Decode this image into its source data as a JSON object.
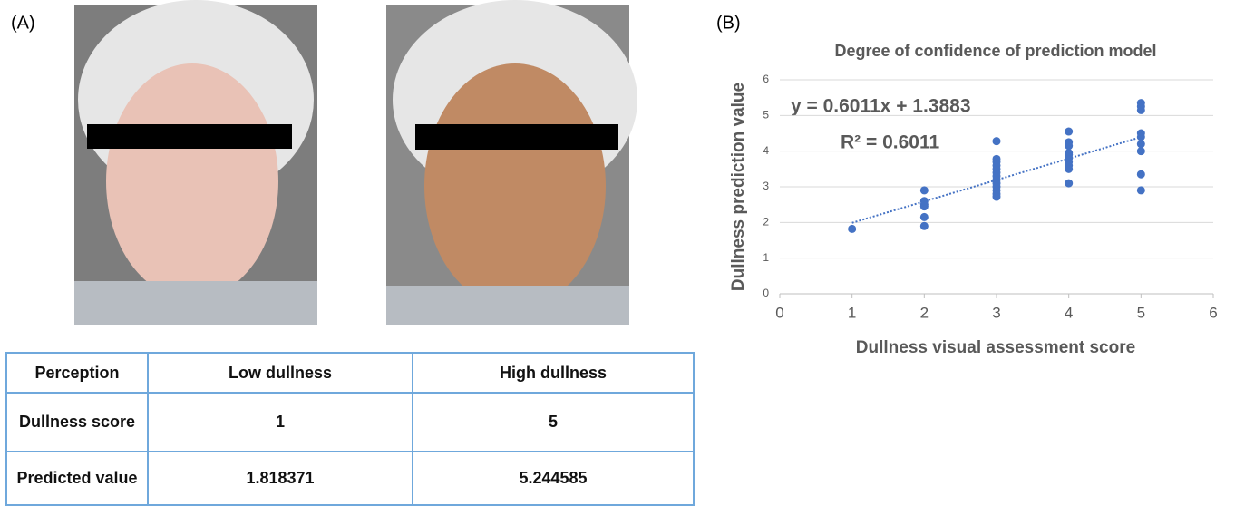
{
  "panels": [
    "(A)",
    "(B)"
  ],
  "table": {
    "header": [
      "Perception",
      "Low dullness",
      "High dullness"
    ],
    "rows": [
      [
        "Dullness score",
        1,
        5
      ],
      [
        "Predicted value",
        1.818371,
        5.244585
      ]
    ]
  },
  "chart_data": {
    "type": "scatter",
    "title": "Degree of confidence of prediction model",
    "x_label": "Dullness visual assessment score",
    "y_label": "Dullness prediction value",
    "annotations": [
      "y = 0.6011x + 1.3883",
      "R² = 0.6011"
    ],
    "x": [
      1,
      2,
      2,
      2,
      2,
      2,
      2,
      3,
      3,
      3,
      3,
      3,
      3,
      3,
      3,
      3,
      3,
      3,
      3,
      3,
      4,
      4,
      4,
      4,
      4,
      4,
      4,
      4,
      4,
      4,
      5,
      5,
      5,
      5,
      5,
      5,
      5,
      5,
      5
    ],
    "values": [
      1.82,
      2.9,
      2.6,
      2.5,
      2.45,
      2.15,
      1.9,
      4.28,
      3.78,
      3.7,
      3.6,
      3.5,
      3.4,
      3.3,
      3.2,
      3.1,
      3.0,
      2.9,
      2.8,
      2.72,
      4.55,
      4.25,
      4.15,
      3.95,
      3.9,
      3.8,
      3.7,
      3.6,
      3.5,
      3.1,
      5.35,
      5.25,
      5.15,
      4.5,
      4.4,
      4.2,
      4.0,
      3.35,
      2.9
    ],
    "color": "#4472c4",
    "trendline": {
      "slope": 0.6011,
      "intercept": 1.3883,
      "color": "#4472c4"
    },
    "xlim": [
      0,
      6
    ],
    "xticks": [
      0,
      1,
      2,
      3,
      4,
      5,
      6
    ],
    "ylim": [
      0,
      6
    ],
    "yticks": [
      0,
      1,
      2,
      3,
      4,
      5,
      6
    ],
    "grid": true
  }
}
